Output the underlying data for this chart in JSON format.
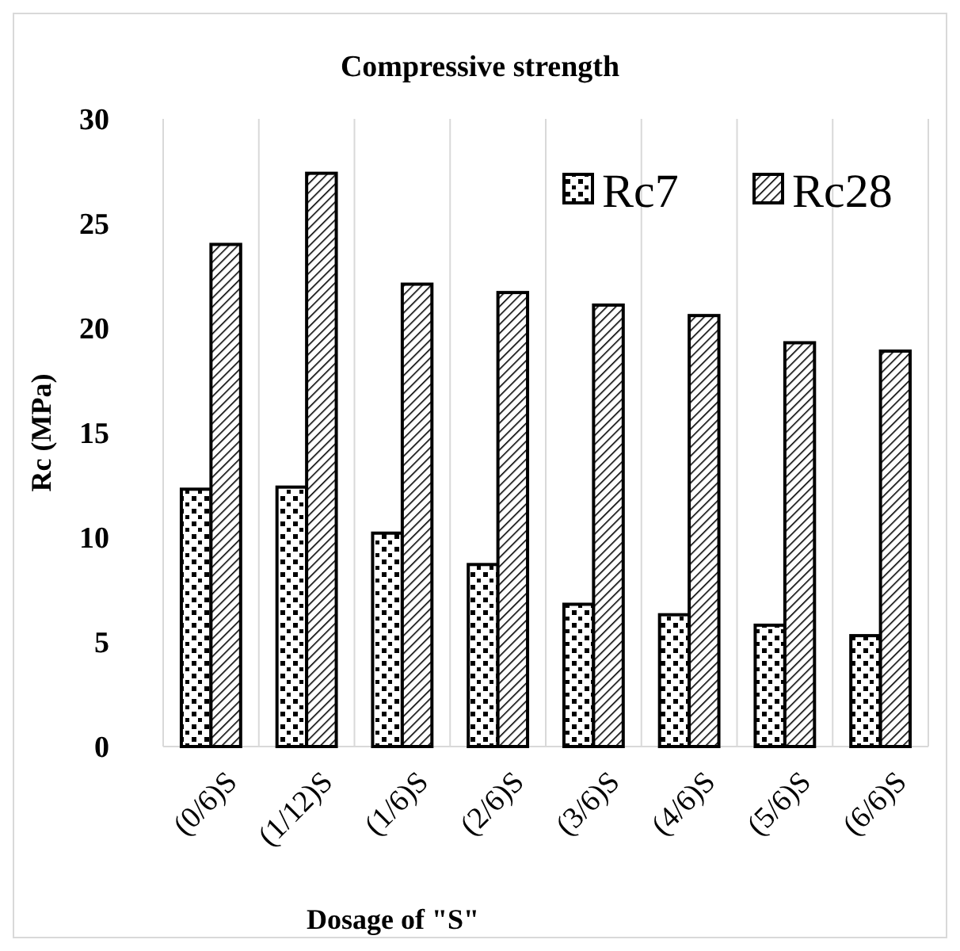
{
  "chart_data": {
    "type": "bar",
    "title": "Compressive strength",
    "xlabel": "Dosage of \"S\"",
    "ylabel": "Rc (MPa)",
    "categories": [
      "(0/6)S",
      "(1/12)S",
      "(1/6)S",
      "(2/6)S",
      "(3/6)S",
      "(4/6)S",
      "(5/6)S",
      "(6/6)S"
    ],
    "series": [
      {
        "name": "Rc7",
        "color": "#000000",
        "values": [
          12.3,
          12.4,
          10.2,
          8.7,
          6.8,
          6.3,
          5.8,
          5.3
        ]
      },
      {
        "name": "Rc28",
        "color": "#000000",
        "values": [
          24.0,
          27.4,
          22.1,
          21.7,
          21.1,
          20.6,
          19.3,
          18.9
        ]
      }
    ],
    "ylim": [
      0,
      30
    ],
    "yticks": [
      0,
      5,
      10,
      15,
      20,
      25,
      30
    ],
    "grid": "x",
    "legend": "top right"
  }
}
